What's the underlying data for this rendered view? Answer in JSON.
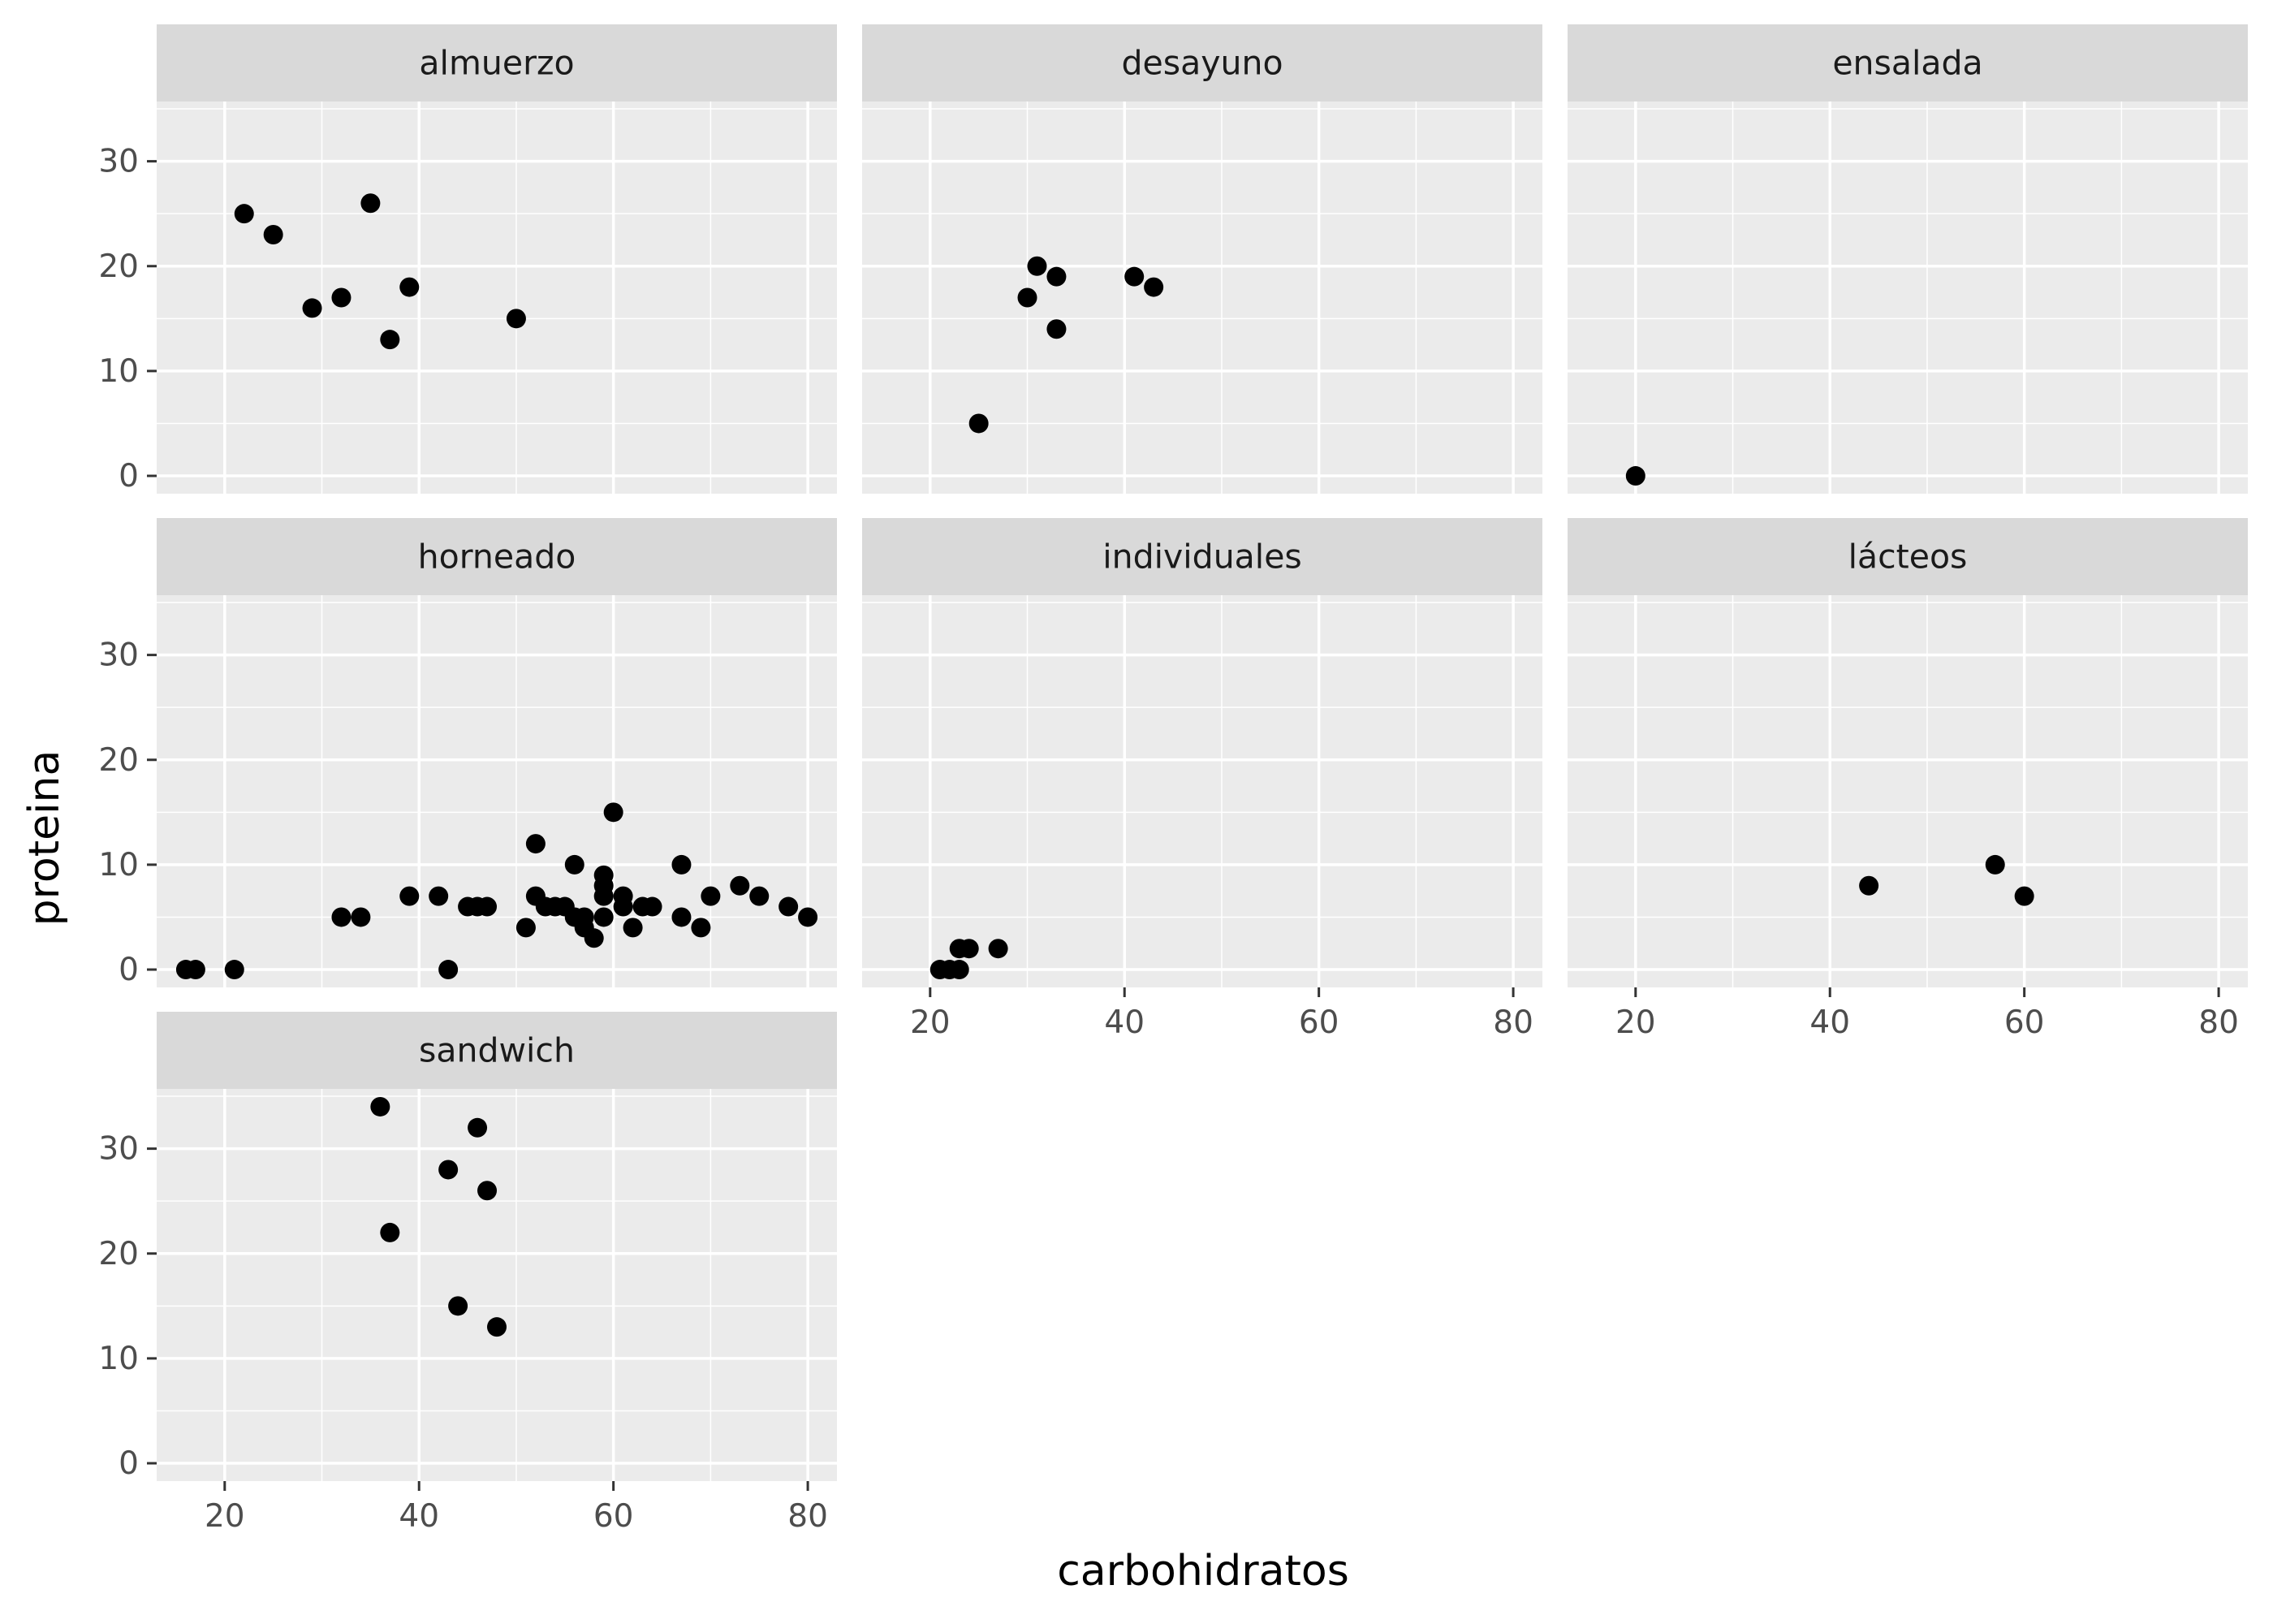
{
  "chart_data": {
    "type": "scatter",
    "xlabel": "carbohidratos",
    "ylabel": "proteina",
    "xlim": [
      13,
      83
    ],
    "ylim": [
      -1.7,
      35.7
    ],
    "x_ticks": [
      20,
      40,
      60,
      80
    ],
    "y_ticks": [
      0,
      10,
      20,
      30
    ],
    "grid": true,
    "panel_background": "#ebebeb",
    "strip_background": "#d9d9d9",
    "grid_color": "#ffffff",
    "point_color": "#000000",
    "facets": [
      {
        "label": "almuerzo",
        "points": [
          [
            22,
            25
          ],
          [
            25,
            23
          ],
          [
            29,
            16
          ],
          [
            32,
            17
          ],
          [
            35,
            26
          ],
          [
            37,
            13
          ],
          [
            39,
            18
          ],
          [
            50,
            15
          ]
        ]
      },
      {
        "label": "desayuno",
        "points": [
          [
            25,
            5
          ],
          [
            30,
            17
          ],
          [
            31,
            20
          ],
          [
            33,
            19
          ],
          [
            33,
            14
          ],
          [
            41,
            19
          ],
          [
            43,
            18
          ]
        ]
      },
      {
        "label": "ensalada",
        "points": [
          [
            20,
            0
          ]
        ]
      },
      {
        "label": "horneado",
        "points": [
          [
            16,
            0
          ],
          [
            17,
            0
          ],
          [
            21,
            0
          ],
          [
            32,
            5
          ],
          [
            34,
            5
          ],
          [
            39,
            7
          ],
          [
            42,
            7
          ],
          [
            43,
            0
          ],
          [
            45,
            6
          ],
          [
            46,
            6
          ],
          [
            47,
            6
          ],
          [
            51,
            4
          ],
          [
            52,
            12
          ],
          [
            52,
            7
          ],
          [
            53,
            6
          ],
          [
            54,
            6
          ],
          [
            55,
            6
          ],
          [
            56,
            10
          ],
          [
            56,
            5
          ],
          [
            57,
            5
          ],
          [
            57,
            4
          ],
          [
            58,
            3
          ],
          [
            59,
            9
          ],
          [
            59,
            8
          ],
          [
            59,
            7
          ],
          [
            59,
            5
          ],
          [
            60,
            15
          ],
          [
            61,
            7
          ],
          [
            61,
            6
          ],
          [
            62,
            4
          ],
          [
            63,
            6
          ],
          [
            64,
            6
          ],
          [
            67,
            10
          ],
          [
            67,
            5
          ],
          [
            69,
            4
          ],
          [
            70,
            7
          ],
          [
            73,
            8
          ],
          [
            75,
            7
          ],
          [
            78,
            6
          ],
          [
            80,
            5
          ]
        ]
      },
      {
        "label": "individuales",
        "points": [
          [
            21,
            0
          ],
          [
            22,
            0
          ],
          [
            23,
            0
          ],
          [
            23,
            2
          ],
          [
            24,
            2
          ],
          [
            27,
            2
          ]
        ]
      },
      {
        "label": "lácteos",
        "points": [
          [
            44,
            8
          ],
          [
            57,
            10
          ],
          [
            60,
            7
          ]
        ]
      },
      {
        "label": "sandwich",
        "points": [
          [
            36,
            34
          ],
          [
            37,
            22
          ],
          [
            43,
            28
          ],
          [
            44,
            15
          ],
          [
            46,
            32
          ],
          [
            47,
            26
          ],
          [
            48,
            13
          ]
        ]
      }
    ]
  }
}
